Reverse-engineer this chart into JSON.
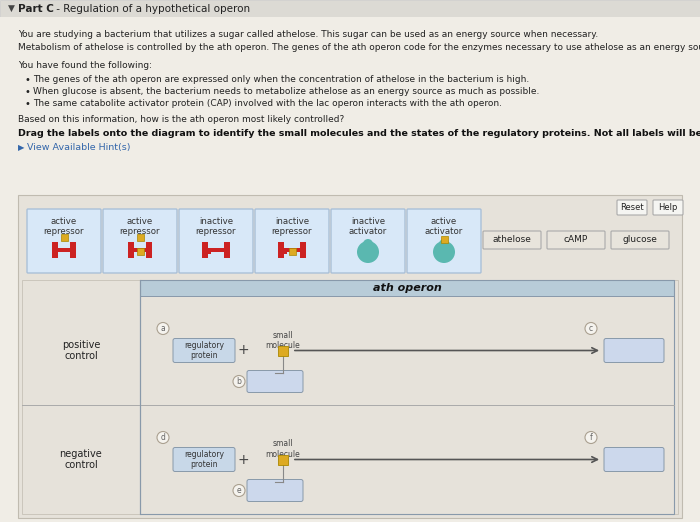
{
  "bg_color": "#f0ede6",
  "header_text": "Part C - Regulation of a hypothetical operon",
  "header_bold": "Part C",
  "body_line1": "You are studying a bacterium that utilizes a sugar called athelose. This sugar can be used as an energy source when necessary.",
  "body_line2": "Metabolism of athelose is controlled by the ath operon. The genes of the ath operon code for the enzymes necessary to use athelose as an energy source.",
  "body_line3": "You have found the following:",
  "bullets": [
    "The genes of the ath operon are expressed only when the concentration of athelose in the bacterium is high.",
    "When glucose is absent, the bacterium needs to metabolize athelose as an energy source as much as possible.",
    "The same catabolite activator protein (CAP) involved with the lac operon interacts with the ath operon."
  ],
  "question": "Based on this information, how is the ath operon most likely controlled?",
  "drag_text": "Drag the labels onto the diagram to identify the small molecules and the states of the regulatory proteins. Not all labels will be used.",
  "hint_text": "View Available Hint(s)",
  "label_cards": [
    "active\nrepressor",
    "active\nrepressor",
    "inactive\nrepressor",
    "inactive\nrepressor",
    "inactive\nactivator",
    "active\nactivator"
  ],
  "chip_labels": [
    "athelose",
    "cAMP",
    "glucose"
  ],
  "ath_operon_label": "ath operon",
  "pos_control": "positive\ncontrol",
  "neg_control": "negative\ncontrol",
  "reg_protein": "regulatory\nprotein",
  "small_mol": "small\nmolecule",
  "circ_labels_pos": [
    "a",
    "b",
    "c"
  ],
  "circ_labels_neg": [
    "d",
    "e",
    "f"
  ]
}
